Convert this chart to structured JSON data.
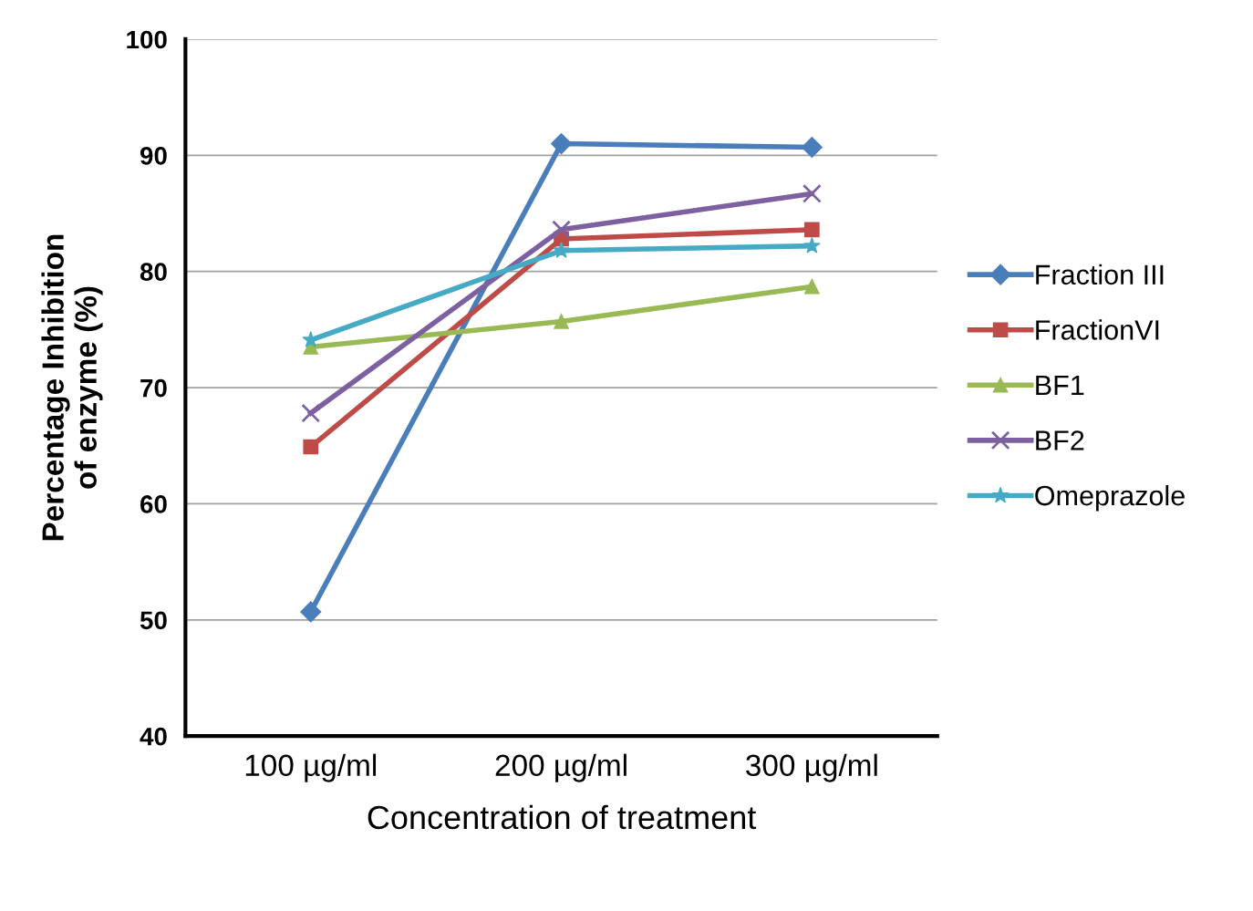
{
  "chart_data": {
    "type": "line",
    "xlabel": "Concentration of treatment",
    "ylabel": "Percentage Inhibition\nof enzyme (%)",
    "categories": [
      "100 µg/ml",
      "200 µg/ml",
      "300 µg/ml"
    ],
    "series": [
      {
        "name": "Fraction III",
        "color": "#4a7ebb",
        "marker": "diamond",
        "values": [
          50.7,
          91.0,
          90.7
        ]
      },
      {
        "name": "FractionVI",
        "color": "#be4b48",
        "marker": "square",
        "values": [
          64.9,
          82.8,
          83.6
        ]
      },
      {
        "name": "BF1",
        "color": "#98b954",
        "marker": "triangle",
        "values": [
          73.5,
          75.7,
          78.7
        ]
      },
      {
        "name": "BF2",
        "color": "#7d60a0",
        "marker": "cross",
        "values": [
          67.8,
          83.6,
          86.7
        ]
      },
      {
        "name": "Omeprazole",
        "color": "#46aac5",
        "marker": "star",
        "values": [
          74.1,
          81.8,
          82.2
        ]
      }
    ],
    "ylim": [
      40,
      100
    ],
    "yticks": [
      40,
      50,
      60,
      70,
      80,
      90,
      100
    ],
    "grid": "y",
    "legend": "right"
  }
}
